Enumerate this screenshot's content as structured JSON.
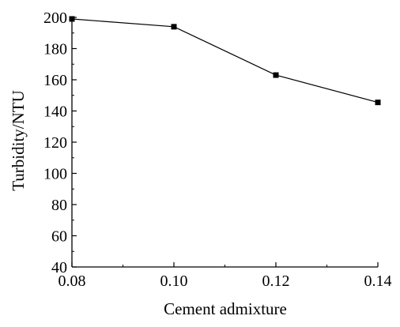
{
  "chart_data": {
    "type": "line",
    "title": "",
    "xlabel": "Cement admixture",
    "ylabel": "Turbidity/NTU",
    "x_ticks": [
      "0.08",
      "0.10",
      "0.12",
      "0.14"
    ],
    "y_ticks": [
      "40",
      "60",
      "80",
      "100",
      "120",
      "140",
      "160",
      "180",
      "200"
    ],
    "xlim": [
      0.08,
      0.14
    ],
    "ylim": [
      40,
      200
    ],
    "grid": false,
    "legend": "none",
    "series": [
      {
        "x": [
          0.08,
          0.1,
          0.12,
          0.14
        ],
        "y": [
          199,
          194,
          163,
          145.5
        ]
      }
    ],
    "colors": {
      "line": "#000000",
      "marker": "#000000",
      "axis": "#000000"
    }
  }
}
